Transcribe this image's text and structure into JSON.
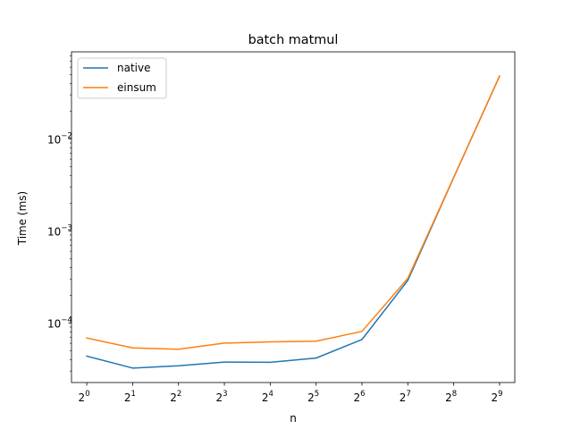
{
  "chart_data": {
    "type": "line",
    "title": "batch matmul",
    "xlabel": "n",
    "ylabel": "Time (ms)",
    "x_scale": "log2",
    "y_scale": "log10",
    "x": [
      1,
      2,
      4,
      8,
      16,
      32,
      64,
      128,
      256,
      512
    ],
    "x_tick_labels": [
      {
        "base": "2",
        "exp": "0"
      },
      {
        "base": "2",
        "exp": "1"
      },
      {
        "base": "2",
        "exp": "2"
      },
      {
        "base": "2",
        "exp": "3"
      },
      {
        "base": "2",
        "exp": "4"
      },
      {
        "base": "2",
        "exp": "5"
      },
      {
        "base": "2",
        "exp": "6"
      },
      {
        "base": "2",
        "exp": "7"
      },
      {
        "base": "2",
        "exp": "8"
      },
      {
        "base": "2",
        "exp": "9"
      }
    ],
    "y_ticks": [
      0.0001,
      0.001,
      0.01
    ],
    "y_tick_labels": [
      {
        "base": "10",
        "exp": "−4"
      },
      {
        "base": "10",
        "exp": "−3"
      },
      {
        "base": "10",
        "exp": "−2"
      }
    ],
    "xlim": [
      0.794,
      644.4
    ],
    "ylim": [
      2.25e-05,
      0.088
    ],
    "grid": false,
    "legend_position": "upper-left",
    "series": [
      {
        "name": "native",
        "color": "#1f77b4",
        "values": [
          4.35e-05,
          3.23e-05,
          3.42e-05,
          3.75e-05,
          3.73e-05,
          4.15e-05,
          6.6e-05,
          0.00029,
          0.0038,
          0.048
        ]
      },
      {
        "name": "einsum",
        "color": "#ff7f0e",
        "values": [
          6.85e-05,
          5.35e-05,
          5.18e-05,
          6.03e-05,
          6.23e-05,
          6.33e-05,
          8.08e-05,
          0.000305,
          0.0038,
          0.048
        ]
      }
    ]
  }
}
